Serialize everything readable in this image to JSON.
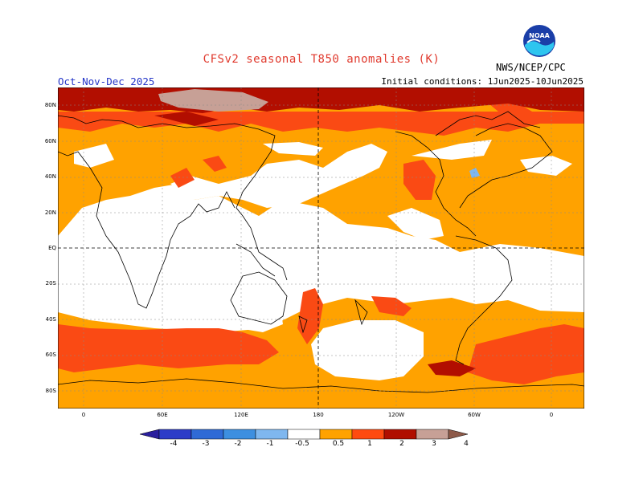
{
  "title": "CFSv2 seasonal T850 anomalies (K)",
  "season": "Oct-Nov-Dec 2025",
  "initial_conditions": "Initial conditions: 1Jun2025-10Jun2025",
  "agency": "NWS/NCEP/CPC",
  "logo_text": "NOAA",
  "lat_labels": [
    "80N",
    "60N",
    "40N",
    "20N",
    "EQ",
    "20S",
    "40S",
    "60S",
    "80S"
  ],
  "lon_labels": [
    "0",
    "60E",
    "120E",
    "180",
    "120W",
    "60W",
    "0"
  ],
  "colorbar": {
    "labels": [
      "-4",
      "-3",
      "-2",
      "-1",
      "-0.5",
      "0.5",
      "1",
      "2",
      "3",
      "4"
    ],
    "colors": [
      "#2a1f9e",
      "#2d3cc8",
      "#2f6ad6",
      "#3d8fe0",
      "#7fb7ef",
      "#ffffff",
      "#ffa200",
      "#ff4a10",
      "#b00e00",
      "#c7a096",
      "#8e5a49"
    ]
  },
  "colors": {
    "title": "#e03a2e",
    "season": "#2436c8",
    "orange": "#ffa200",
    "red": "#fa4a14",
    "darkred": "#b20e00",
    "pink": "#c7a096",
    "blue": "#7fb7ef"
  }
}
